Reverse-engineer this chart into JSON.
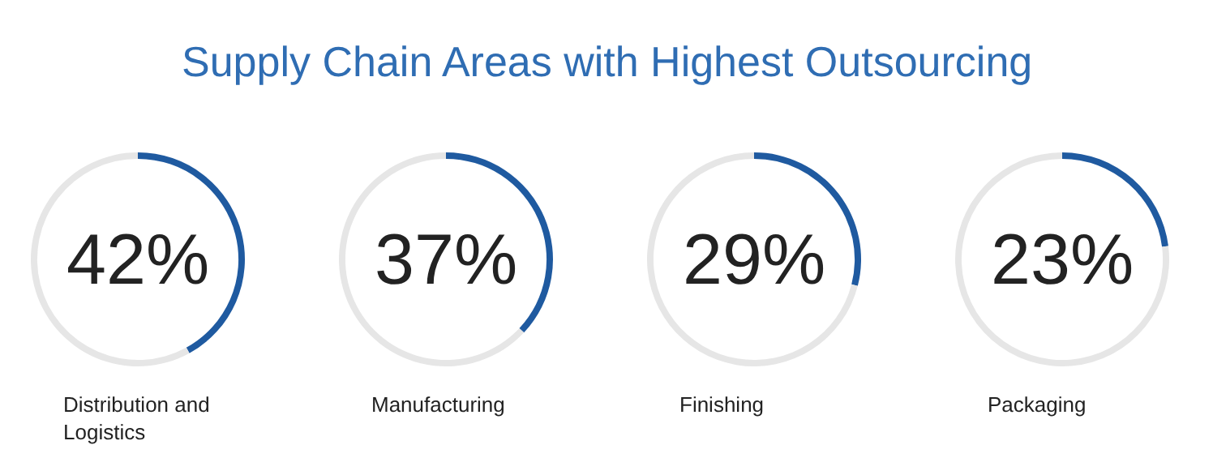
{
  "chart_data": [
    {
      "type": "other",
      "title": "Supply Chain Areas with Highest Outsourcing"
    },
    {
      "type": "donut",
      "title": "Distribution and Logistics",
      "categories": [
        null,
        null
      ],
      "values": [
        42,
        58
      ],
      "colors": [
        "#1f5aa0",
        "#e6e6e6"
      ],
      "annotations": [
        "42%"
      ]
    },
    {
      "type": "donut",
      "title": "Manufacturing",
      "categories": [
        null,
        null
      ],
      "values": [
        37,
        63
      ],
      "colors": [
        "#1f5aa0",
        "#e6e6e6"
      ],
      "annotations": [
        "37%"
      ]
    },
    {
      "type": "donut",
      "title": "Finishing",
      "categories": [
        null,
        null
      ],
      "values": [
        29,
        71
      ],
      "colors": [
        "#1f5aa0",
        "#e6e6e6"
      ],
      "annotations": [
        "29%"
      ]
    },
    {
      "type": "donut",
      "title": "Packaging",
      "categories": [
        null,
        null
      ],
      "values": [
        23,
        77
      ],
      "colors": [
        "#1f5aa0",
        "#e6e6e6"
      ],
      "annotations": [
        "23%"
      ]
    }
  ]
}
